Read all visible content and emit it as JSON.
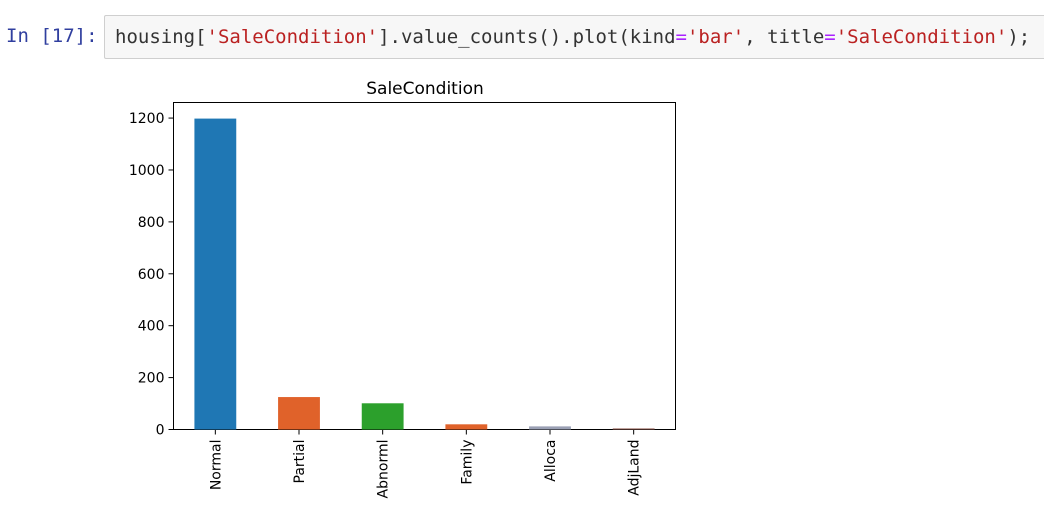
{
  "cell": {
    "prompt": "In [17]:",
    "code": {
      "p1": "housing[",
      "s1": "'SaleCondition'",
      "p2": "].value_counts().plot(kind",
      "o1": "=",
      "s2": "'bar'",
      "p3": ", title",
      "o2": "=",
      "s3": "'SaleCondition'",
      "p4": ");"
    }
  },
  "chart_data": {
    "type": "bar",
    "title": "SaleCondition",
    "xlabel": "",
    "ylabel": "",
    "categories": [
      "Normal",
      "Partial",
      "Abnorml",
      "Family",
      "Alloca",
      "AdjLand"
    ],
    "values": [
      1198,
      125,
      101,
      20,
      12,
      4
    ],
    "colors": [
      "#1f77b4",
      "#e0622a",
      "#2ca02c",
      "#e0622a",
      "#9aa0b4",
      "#8c564b"
    ],
    "yticks": [
      "0",
      "200",
      "400",
      "600",
      "800",
      "1000",
      "1200"
    ],
    "ylim": [
      0,
      1260
    ],
    "grid": false
  }
}
